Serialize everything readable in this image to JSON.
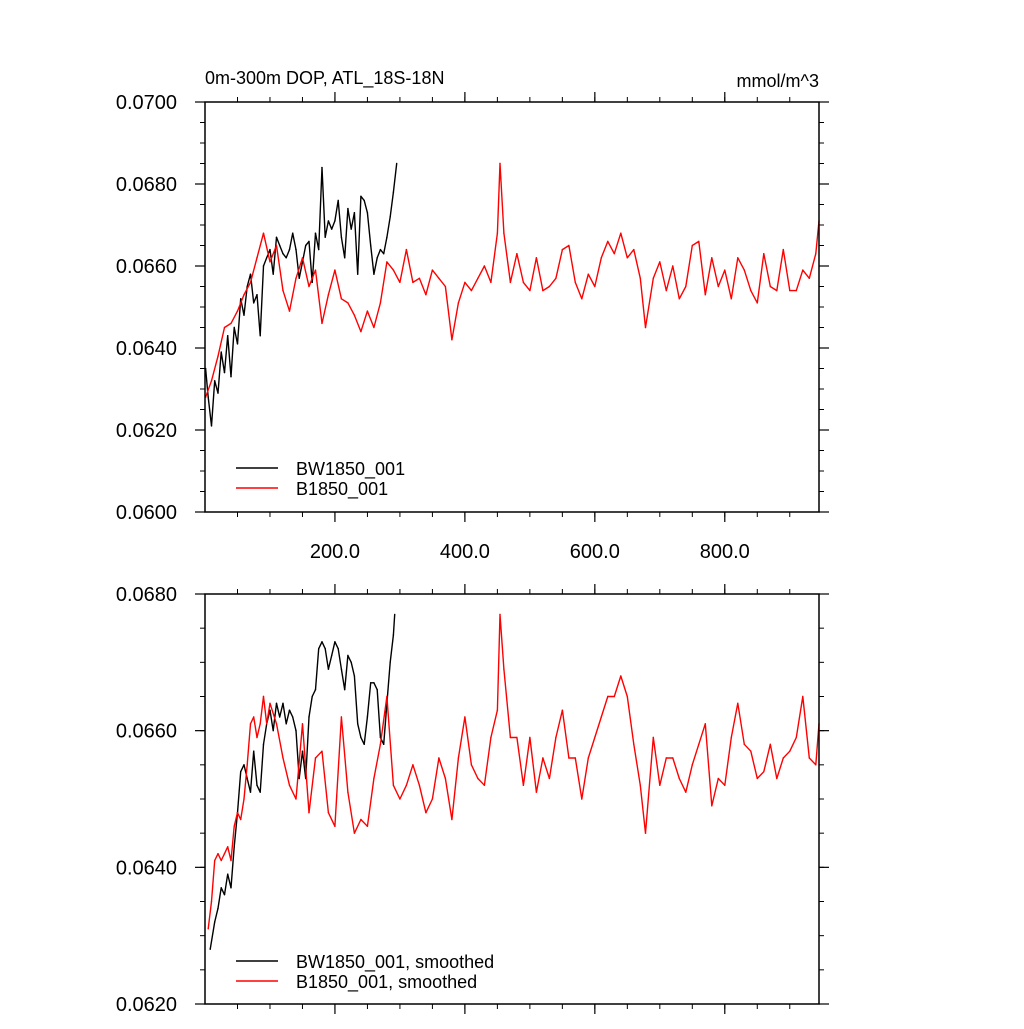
{
  "chart_data": [
    {
      "type": "line",
      "title": "0m-300m DOP, ATL_18S-18N",
      "units": "mmol/m^3",
      "xlim": [
        0,
        945
      ],
      "ylim": [
        0.06,
        0.07
      ],
      "yticks": [
        "0.0600",
        "0.0620",
        "0.0640",
        "0.0660",
        "0.0680",
        "0.0700"
      ],
      "yminor_step": 0.0005,
      "xticks": [
        "200.0",
        "400.0",
        "600.0",
        "800.0"
      ],
      "xminor_step": 50,
      "legend_position": "bottom-left",
      "series": [
        {
          "name": "BW1850_001",
          "color": "#000000",
          "x": [
            1,
            5,
            10,
            15,
            20,
            25,
            30,
            35,
            40,
            45,
            50,
            55,
            60,
            65,
            70,
            75,
            80,
            85,
            90,
            95,
            100,
            105,
            110,
            115,
            120,
            125,
            130,
            135,
            140,
            145,
            150,
            155,
            160,
            165,
            170,
            175,
            180,
            185,
            190,
            195,
            200,
            205,
            210,
            215,
            220,
            225,
            230,
            235,
            240,
            245,
            250,
            255,
            260,
            265,
            270,
            275,
            280,
            285,
            290,
            295
          ],
          "values": [
            0.0635,
            0.0628,
            0.0621,
            0.0632,
            0.0629,
            0.0639,
            0.0634,
            0.0643,
            0.0633,
            0.0645,
            0.0641,
            0.0652,
            0.0648,
            0.0655,
            0.0658,
            0.0651,
            0.0653,
            0.0643,
            0.066,
            0.0662,
            0.0664,
            0.0658,
            0.0667,
            0.0665,
            0.0663,
            0.0662,
            0.0664,
            0.0668,
            0.0664,
            0.0657,
            0.0661,
            0.0665,
            0.0666,
            0.0656,
            0.0668,
            0.0664,
            0.0684,
            0.0667,
            0.0671,
            0.0669,
            0.0671,
            0.0676,
            0.0667,
            0.0662,
            0.0674,
            0.0669,
            0.0673,
            0.0658,
            0.0677,
            0.0676,
            0.0673,
            0.0665,
            0.0658,
            0.0662,
            0.0664,
            0.0663,
            0.0667,
            0.0672,
            0.0678,
            0.0685
          ]
        },
        {
          "name": "B1850_001",
          "color": "#ff0000",
          "x": [
            1,
            10,
            20,
            30,
            40,
            50,
            60,
            70,
            80,
            90,
            100,
            110,
            120,
            130,
            140,
            150,
            160,
            170,
            180,
            190,
            200,
            210,
            220,
            230,
            240,
            250,
            260,
            270,
            280,
            290,
            300,
            310,
            320,
            330,
            340,
            350,
            360,
            370,
            380,
            390,
            400,
            410,
            420,
            430,
            440,
            450,
            454,
            460,
            470,
            480,
            490,
            500,
            510,
            520,
            530,
            540,
            550,
            560,
            570,
            580,
            590,
            600,
            610,
            620,
            630,
            640,
            650,
            660,
            670,
            678,
            690,
            700,
            710,
            720,
            730,
            740,
            750,
            760,
            770,
            780,
            790,
            800,
            810,
            820,
            830,
            840,
            850,
            860,
            870,
            880,
            890,
            900,
            910,
            920,
            930,
            940,
            945
          ],
          "values": [
            0.0628,
            0.0632,
            0.0638,
            0.0645,
            0.0646,
            0.0649,
            0.0653,
            0.0656,
            0.0662,
            0.0668,
            0.0661,
            0.0665,
            0.0654,
            0.0649,
            0.0657,
            0.0662,
            0.0655,
            0.0659,
            0.0646,
            0.0653,
            0.0659,
            0.0652,
            0.0651,
            0.0648,
            0.0644,
            0.0649,
            0.0645,
            0.0651,
            0.0661,
            0.0659,
            0.0656,
            0.0664,
            0.0656,
            0.0657,
            0.0653,
            0.0659,
            0.0657,
            0.0655,
            0.0642,
            0.0651,
            0.0656,
            0.0654,
            0.0657,
            0.066,
            0.0656,
            0.0668,
            0.0685,
            0.0668,
            0.0656,
            0.0663,
            0.0656,
            0.0654,
            0.0662,
            0.0654,
            0.0655,
            0.0657,
            0.0664,
            0.0665,
            0.0656,
            0.0652,
            0.0658,
            0.0655,
            0.0662,
            0.0666,
            0.0663,
            0.0668,
            0.0662,
            0.0664,
            0.0657,
            0.0645,
            0.0657,
            0.0661,
            0.0654,
            0.066,
            0.0652,
            0.0655,
            0.0665,
            0.0666,
            0.0653,
            0.0662,
            0.0655,
            0.0659,
            0.0652,
            0.0662,
            0.0659,
            0.0654,
            0.0651,
            0.0663,
            0.0655,
            0.0654,
            0.0664,
            0.0654,
            0.0654,
            0.0659,
            0.0657,
            0.0663,
            0.0671
          ]
        }
      ]
    },
    {
      "type": "line",
      "xlim": [
        0,
        945
      ],
      "ylim": [
        0.062,
        0.068
      ],
      "yticks": [
        "0.0620",
        "0.0640",
        "0.0660",
        "0.0680"
      ],
      "yminor_step": 0.0005,
      "xticks": [],
      "xminor_step": 50,
      "xmajor_step": 200,
      "legend_position": "bottom-left",
      "series": [
        {
          "name": "BW1850_001, smoothed",
          "color": "#000000",
          "x": [
            8,
            15,
            20,
            25,
            30,
            35,
            40,
            45,
            50,
            55,
            60,
            65,
            70,
            75,
            80,
            85,
            90,
            95,
            100,
            105,
            110,
            115,
            120,
            125,
            130,
            135,
            140,
            145,
            150,
            155,
            160,
            165,
            170,
            175,
            180,
            185,
            190,
            195,
            200,
            205,
            210,
            215,
            220,
            225,
            230,
            235,
            240,
            245,
            250,
            255,
            260,
            265,
            270,
            275,
            280,
            285,
            290,
            292
          ],
          "values": [
            0.0628,
            0.0632,
            0.0634,
            0.0637,
            0.0636,
            0.0639,
            0.0637,
            0.0643,
            0.0648,
            0.0654,
            0.0655,
            0.0653,
            0.0651,
            0.0657,
            0.0652,
            0.0651,
            0.0658,
            0.0661,
            0.0663,
            0.066,
            0.0664,
            0.0662,
            0.0664,
            0.0661,
            0.0663,
            0.0662,
            0.066,
            0.0653,
            0.0657,
            0.0653,
            0.0662,
            0.0665,
            0.0666,
            0.0672,
            0.0673,
            0.0672,
            0.0669,
            0.0671,
            0.0673,
            0.0672,
            0.0669,
            0.0666,
            0.0671,
            0.067,
            0.0668,
            0.0661,
            0.0659,
            0.0658,
            0.0662,
            0.0667,
            0.0667,
            0.0666,
            0.0659,
            0.0658,
            0.0664,
            0.067,
            0.0674,
            0.0677
          ]
        },
        {
          "name": "B1850_001, smoothed",
          "color": "#ff0000",
          "x": [
            5,
            10,
            15,
            20,
            25,
            30,
            35,
            40,
            45,
            50,
            55,
            60,
            65,
            70,
            75,
            80,
            85,
            90,
            95,
            100,
            110,
            120,
            130,
            140,
            150,
            160,
            170,
            180,
            190,
            200,
            210,
            220,
            230,
            240,
            250,
            260,
            270,
            280,
            290,
            300,
            310,
            320,
            330,
            340,
            350,
            360,
            370,
            380,
            390,
            400,
            410,
            420,
            430,
            440,
            450,
            454,
            460,
            470,
            480,
            490,
            500,
            510,
            520,
            530,
            540,
            550,
            560,
            570,
            580,
            590,
            600,
            610,
            620,
            630,
            640,
            650,
            660,
            670,
            678,
            690,
            700,
            710,
            720,
            730,
            740,
            750,
            760,
            770,
            780,
            790,
            800,
            810,
            820,
            830,
            840,
            850,
            860,
            870,
            880,
            890,
            900,
            910,
            920,
            930,
            940,
            945
          ],
          "values": [
            0.0631,
            0.0635,
            0.0641,
            0.0642,
            0.0641,
            0.0642,
            0.0643,
            0.0641,
            0.0646,
            0.0648,
            0.0647,
            0.065,
            0.0655,
            0.0661,
            0.0662,
            0.0659,
            0.0661,
            0.0665,
            0.0661,
            0.0664,
            0.0661,
            0.0656,
            0.0652,
            0.065,
            0.0661,
            0.0648,
            0.0656,
            0.0657,
            0.0648,
            0.0646,
            0.0662,
            0.0651,
            0.0645,
            0.0647,
            0.0646,
            0.0653,
            0.0658,
            0.0665,
            0.0652,
            0.065,
            0.0652,
            0.0655,
            0.0652,
            0.0648,
            0.065,
            0.0656,
            0.0653,
            0.0647,
            0.0656,
            0.0662,
            0.0655,
            0.0653,
            0.0652,
            0.0659,
            0.0663,
            0.0677,
            0.0669,
            0.0659,
            0.0659,
            0.0652,
            0.0659,
            0.0651,
            0.0656,
            0.0653,
            0.0659,
            0.0663,
            0.0656,
            0.0656,
            0.065,
            0.0656,
            0.0659,
            0.0662,
            0.0665,
            0.0665,
            0.0668,
            0.0665,
            0.0658,
            0.0652,
            0.0645,
            0.0659,
            0.0652,
            0.0656,
            0.0656,
            0.0653,
            0.0651,
            0.0655,
            0.0658,
            0.0661,
            0.0649,
            0.0653,
            0.0652,
            0.0659,
            0.0664,
            0.0658,
            0.0657,
            0.0653,
            0.0654,
            0.0658,
            0.0653,
            0.0656,
            0.0657,
            0.0659,
            0.0665,
            0.0656,
            0.0655,
            0.0661
          ]
        }
      ]
    }
  ]
}
